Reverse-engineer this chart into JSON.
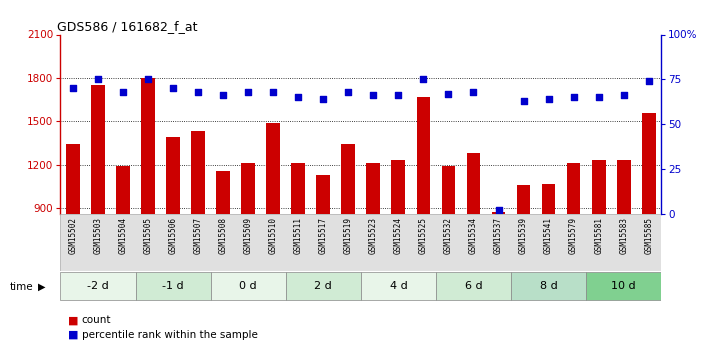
{
  "title": "GDS586 / 161682_f_at",
  "samples": [
    "GSM15502",
    "GSM15503",
    "GSM15504",
    "GSM15505",
    "GSM15506",
    "GSM15507",
    "GSM15508",
    "GSM15509",
    "GSM15510",
    "GSM15511",
    "GSM15517",
    "GSM15519",
    "GSM15523",
    "GSM15524",
    "GSM15525",
    "GSM15532",
    "GSM15534",
    "GSM15537",
    "GSM15539",
    "GSM15541",
    "GSM15579",
    "GSM15581",
    "GSM15583",
    "GSM15585"
  ],
  "counts": [
    1340,
    1750,
    1190,
    1800,
    1390,
    1430,
    1155,
    1215,
    1490,
    1215,
    1130,
    1340,
    1215,
    1230,
    1670,
    1190,
    1280,
    870,
    1060,
    1070,
    1215,
    1230,
    1230,
    1560
  ],
  "percentile": [
    70,
    75,
    68,
    75,
    70,
    68,
    66,
    68,
    68,
    65,
    64,
    68,
    66,
    66,
    75,
    67,
    68,
    2,
    63,
    64,
    65,
    65,
    66,
    74
  ],
  "time_groups": [
    {
      "label": "-2 d",
      "start": 0,
      "end": 3
    },
    {
      "label": "-1 d",
      "start": 3,
      "end": 6
    },
    {
      "label": "0 d",
      "start": 6,
      "end": 9
    },
    {
      "label": "2 d",
      "start": 9,
      "end": 12
    },
    {
      "label": "4 d",
      "start": 12,
      "end": 15
    },
    {
      "label": "6 d",
      "start": 15,
      "end": 18
    },
    {
      "label": "8 d",
      "start": 18,
      "end": 21
    },
    {
      "label": "10 d",
      "start": 21,
      "end": 24
    }
  ],
  "group_colors": [
    "#e8f5e9",
    "#d0ebd4",
    "#e8f5e9",
    "#d0ebd4",
    "#e8f5e9",
    "#d0ebd4",
    "#b8dfc8",
    "#80d090"
  ],
  "ylim_left": [
    860,
    2100
  ],
  "ylim_right": [
    0,
    100
  ],
  "yticks_left": [
    900,
    1200,
    1500,
    1800,
    2100
  ],
  "yticks_right": [
    0,
    25,
    50,
    75,
    100
  ],
  "bar_color": "#cc0000",
  "dot_color": "#0000cc",
  "grid_color": "#000000",
  "axis_color_left": "#cc0000",
  "axis_color_right": "#0000cc",
  "bg_color": "#ffffff",
  "legend_count": "count",
  "legend_pct": "percentile rank within the sample"
}
